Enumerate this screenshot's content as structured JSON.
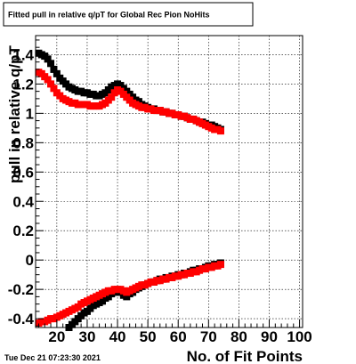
{
  "chart_data": {
    "type": "scatter",
    "title": "Fitted pull in relative q/pT for Global Rec Pion NoHits",
    "xlabel": "No. of Fit Points",
    "ylabel": "pull in relative q/pT",
    "xlim": [
      13,
      101
    ],
    "ylim": [
      -0.46,
      1.53
    ],
    "x_ticks": [
      20,
      30,
      40,
      50,
      60,
      70,
      80,
      90,
      100
    ],
    "x_tick_labels": [
      "20",
      "30",
      "40",
      "50",
      "60",
      "70",
      "80",
      "90",
      "100"
    ],
    "y_ticks": [
      -0.4,
      -0.2,
      0,
      0.2,
      0.4,
      0.6,
      0.8,
      1,
      1.2,
      1.4
    ],
    "y_tick_labels": [
      "-0.4",
      "-0.2",
      "0",
      "0.2",
      "0.4",
      "0.6",
      "0.8",
      "1",
      "1.2",
      "1.4"
    ],
    "grid": true,
    "series": [
      {
        "color": "#000000",
        "x": [
          14,
          15,
          16,
          17,
          18,
          19,
          20,
          21,
          22,
          23,
          24,
          25,
          26,
          27,
          28,
          29,
          30,
          31,
          32,
          33,
          34,
          35,
          36,
          37,
          38,
          39,
          40,
          41,
          42,
          43,
          44,
          45,
          46,
          47,
          48,
          49,
          50,
          51,
          52,
          53,
          54,
          55,
          56,
          57,
          58,
          59,
          60,
          61,
          62,
          63,
          64,
          65,
          66,
          67,
          68,
          69,
          70,
          71,
          72,
          73,
          74
        ],
        "values": [
          1.41,
          1.4,
          1.39,
          1.37,
          1.34,
          1.3,
          1.27,
          1.24,
          1.22,
          1.2,
          1.18,
          1.17,
          1.16,
          1.15,
          1.15,
          1.14,
          1.14,
          1.13,
          1.13,
          1.12,
          1.12,
          1.13,
          1.14,
          1.16,
          1.18,
          1.19,
          1.2,
          1.19,
          1.17,
          1.15,
          1.13,
          1.11,
          1.09,
          1.08,
          1.06,
          1.05,
          1.04,
          1.03,
          1.03,
          1.02,
          1.02,
          1.01,
          1.01,
          1.0,
          1.0,
          0.99,
          0.99,
          0.98,
          0.98,
          0.97,
          0.96,
          0.96,
          0.95,
          0.94,
          0.94,
          0.93,
          0.92,
          0.92,
          0.91,
          0.9,
          0.89
        ]
      },
      {
        "color": "#ff0000",
        "x": [
          14,
          15,
          16,
          17,
          18,
          19,
          20,
          21,
          22,
          23,
          24,
          25,
          26,
          27,
          28,
          29,
          30,
          31,
          32,
          33,
          34,
          35,
          36,
          37,
          38,
          39,
          40,
          41,
          42,
          43,
          44,
          45,
          46,
          47,
          48,
          49,
          50,
          51,
          52,
          53,
          54,
          55,
          56,
          57,
          58,
          59,
          60,
          61,
          62,
          63,
          64,
          65,
          66,
          67,
          68,
          69,
          70,
          71,
          72,
          73,
          74
        ],
        "values": [
          1.28,
          1.27,
          1.25,
          1.23,
          1.2,
          1.17,
          1.14,
          1.12,
          1.1,
          1.09,
          1.08,
          1.07,
          1.07,
          1.06,
          1.06,
          1.06,
          1.06,
          1.05,
          1.05,
          1.05,
          1.05,
          1.06,
          1.07,
          1.09,
          1.11,
          1.14,
          1.16,
          1.15,
          1.13,
          1.11,
          1.09,
          1.07,
          1.06,
          1.05,
          1.04,
          1.04,
          1.03,
          1.03,
          1.02,
          1.02,
          1.02,
          1.01,
          1.01,
          1.0,
          1.0,
          0.99,
          0.99,
          0.98,
          0.98,
          0.97,
          0.96,
          0.96,
          0.95,
          0.94,
          0.93,
          0.92,
          0.91,
          0.9,
          0.89,
          0.89,
          0.88
        ]
      },
      {
        "color": "#000000",
        "x": [
          24,
          25,
          26,
          27,
          28,
          29,
          30,
          31,
          32,
          33,
          34,
          35,
          36,
          37,
          38,
          39,
          40,
          41,
          42,
          43,
          44,
          45,
          46,
          47,
          48,
          49,
          50,
          51,
          52,
          53,
          54,
          55,
          56,
          57,
          58,
          59,
          60,
          61,
          62,
          63,
          64,
          65,
          66,
          67,
          68,
          69,
          70,
          71,
          72,
          73,
          74
        ],
        "values": [
          -0.46,
          -0.44,
          -0.42,
          -0.4,
          -0.38,
          -0.36,
          -0.35,
          -0.33,
          -0.31,
          -0.3,
          -0.29,
          -0.28,
          -0.26,
          -0.25,
          -0.23,
          -0.22,
          -0.21,
          -0.22,
          -0.24,
          -0.25,
          -0.23,
          -0.22,
          -0.2,
          -0.19,
          -0.18,
          -0.17,
          -0.16,
          -0.15,
          -0.15,
          -0.14,
          -0.13,
          -0.13,
          -0.12,
          -0.12,
          -0.11,
          -0.11,
          -0.1,
          -0.1,
          -0.09,
          -0.09,
          -0.08,
          -0.07,
          -0.07,
          -0.06,
          -0.06,
          -0.05,
          -0.04,
          -0.04,
          -0.03,
          -0.03,
          -0.02
        ]
      },
      {
        "color": "#ff0000",
        "x": [
          14,
          15,
          16,
          17,
          18,
          19,
          20,
          21,
          22,
          23,
          24,
          25,
          26,
          27,
          28,
          29,
          30,
          31,
          32,
          33,
          34,
          35,
          36,
          37,
          38,
          39,
          40,
          41,
          42,
          43,
          44,
          45,
          46,
          47,
          48,
          49,
          50,
          51,
          52,
          53,
          54,
          55,
          56,
          57,
          58,
          59,
          60,
          61,
          62,
          63,
          64,
          65,
          66,
          67,
          68,
          69,
          70,
          71,
          72,
          73,
          74
        ],
        "values": [
          -0.43,
          -0.42,
          -0.42,
          -0.41,
          -0.4,
          -0.4,
          -0.39,
          -0.38,
          -0.37,
          -0.36,
          -0.35,
          -0.34,
          -0.33,
          -0.32,
          -0.3,
          -0.29,
          -0.28,
          -0.27,
          -0.26,
          -0.25,
          -0.24,
          -0.23,
          -0.22,
          -0.21,
          -0.21,
          -0.2,
          -0.2,
          -0.2,
          -0.21,
          -0.22,
          -0.21,
          -0.2,
          -0.19,
          -0.18,
          -0.17,
          -0.17,
          -0.16,
          -0.15,
          -0.15,
          -0.14,
          -0.14,
          -0.13,
          -0.13,
          -0.12,
          -0.12,
          -0.11,
          -0.11,
          -0.1,
          -0.1,
          -0.09,
          -0.09,
          -0.08,
          -0.08,
          -0.07,
          -0.06,
          -0.06,
          -0.05,
          -0.05,
          -0.04,
          -0.04,
          -0.03
        ]
      }
    ]
  },
  "footer": {
    "timestamp": "Tue Dec 21 07:23:30 2021"
  }
}
